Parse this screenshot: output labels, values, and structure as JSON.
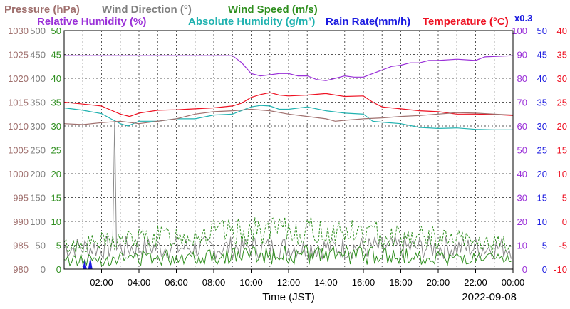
{
  "chart_data": {
    "type": "line",
    "date": "2022-09-08",
    "xlabel": "Time (JST)",
    "x_ticks": [
      "02:00",
      "04:00",
      "06:00",
      "08:00",
      "10:00",
      "12:00",
      "14:00",
      "16:00",
      "18:00",
      "20:00",
      "22:00",
      "00:00"
    ],
    "x_range_hours": [
      0,
      24
    ],
    "legend": {
      "row1": [
        {
          "text": "Pressure (hPa)",
          "color": "#a0706e"
        },
        {
          "text": "Wind Direction (°)",
          "color": "#7f7f7f"
        },
        {
          "text": "Wind Speed (m/s)",
          "color": "#2f8f1f"
        }
      ],
      "row2": [
        {
          "text": "Relative Humidity (%)",
          "color": "#9a30d8"
        },
        {
          "text": "Absolute Humidity (g/m³)",
          "color": "#20b2b0"
        },
        {
          "text": "Rain Rate(mm/h)",
          "color": "#1a1ae0"
        },
        {
          "text": "Temperature (°C)",
          "color": "#ee1122"
        }
      ],
      "rain_scale_note": "x0.3"
    },
    "axes": {
      "pressure": {
        "unit": "hPa",
        "range": [
          980,
          1030
        ],
        "color": "#a0706e",
        "ticks": [
          "980",
          "985",
          "990",
          "995",
          "1000",
          "1005",
          "1010",
          "1015",
          "1020",
          "1025",
          "1030"
        ]
      },
      "wind_direction": {
        "unit": "°",
        "range": [
          0,
          500
        ],
        "color": "#7f7f7f",
        "ticks": [
          "0",
          "50",
          "100",
          "150",
          "200",
          "250",
          "300",
          "350",
          "400",
          "450",
          "500"
        ]
      },
      "wind_speed": {
        "unit": "m/s",
        "range": [
          0,
          50
        ],
        "color": "#2f8f1f",
        "ticks": [
          "0",
          "5",
          "10",
          "15",
          "20",
          "25",
          "30",
          "35",
          "40",
          "45",
          "50"
        ]
      },
      "humidity": {
        "unit": "%",
        "range": [
          0,
          100
        ],
        "color": "#9a30d8",
        "ticks": [
          "0",
          "10",
          "20",
          "30",
          "40",
          "50",
          "60",
          "70",
          "80",
          "90",
          "100"
        ]
      },
      "rain": {
        "unit": "mm/h",
        "range": [
          0,
          50
        ],
        "color": "#1a1ae0",
        "ticks": [
          "0",
          "5",
          "10",
          "15",
          "20",
          "25",
          "30",
          "35",
          "40",
          "45",
          "50"
        ]
      },
      "temperature": {
        "unit": "°C",
        "range": [
          -10,
          40
        ],
        "color": "#ee1122",
        "ticks": [
          "-10",
          "-5",
          "0",
          "5",
          "10",
          "15",
          "20",
          "25",
          "30",
          "35",
          "40"
        ]
      }
    },
    "series": [
      {
        "name": "Relative Humidity",
        "axis": "humidity",
        "color": "#9a30d8",
        "points": [
          [
            0,
            89.5
          ],
          [
            6,
            89.5
          ],
          [
            8,
            89.5
          ],
          [
            9,
            89.5
          ],
          [
            9.5,
            86.5
          ],
          [
            10,
            82
          ],
          [
            10.5,
            81
          ],
          [
            11,
            81.5
          ],
          [
            11.5,
            82
          ],
          [
            12,
            82
          ],
          [
            12.5,
            81
          ],
          [
            13,
            81
          ],
          [
            13.5,
            79.5
          ],
          [
            14,
            79
          ],
          [
            14.5,
            80
          ],
          [
            15,
            81
          ],
          [
            15.5,
            80.5
          ],
          [
            16,
            80.5
          ],
          [
            16.5,
            82
          ],
          [
            17,
            83.5
          ],
          [
            17.5,
            85
          ],
          [
            18,
            85.5
          ],
          [
            18.5,
            86.5
          ],
          [
            19,
            86.5
          ],
          [
            19.5,
            87.5
          ],
          [
            20,
            87.5
          ],
          [
            21,
            88
          ],
          [
            22,
            87.5
          ],
          [
            22.5,
            89
          ],
          [
            24,
            89.5
          ]
        ]
      },
      {
        "name": "Temperature",
        "axis": "temperature",
        "color": "#ee1122",
        "points": [
          [
            0,
            25
          ],
          [
            1,
            24.6
          ],
          [
            2,
            24.2
          ],
          [
            3,
            22.5
          ],
          [
            3.5,
            22
          ],
          [
            4,
            22.7
          ],
          [
            5,
            23.3
          ],
          [
            6,
            23.4
          ],
          [
            7,
            23.6
          ],
          [
            8,
            23.8
          ],
          [
            9,
            24.2
          ],
          [
            9.5,
            24.8
          ],
          [
            10,
            26
          ],
          [
            10.5,
            26.6
          ],
          [
            11,
            27
          ],
          [
            11.5,
            26.5
          ],
          [
            12,
            26.3
          ],
          [
            13,
            26.5
          ],
          [
            14,
            26.8
          ],
          [
            14.5,
            26.5
          ],
          [
            15,
            26.2
          ],
          [
            16,
            26.3
          ],
          [
            16.5,
            25
          ],
          [
            17,
            24
          ],
          [
            18,
            23.6
          ],
          [
            19,
            23.2
          ],
          [
            20,
            23
          ],
          [
            21,
            22.5
          ],
          [
            22,
            22.5
          ],
          [
            23,
            22.4
          ],
          [
            24,
            22.2
          ]
        ]
      },
      {
        "name": "Absolute Humidity",
        "axis": "wind_speed",
        "color": "#20b2b0",
        "points": [
          [
            0,
            33.8
          ],
          [
            1,
            33.3
          ],
          [
            2,
            32.6
          ],
          [
            2.5,
            31.5
          ],
          [
            3,
            30.5
          ],
          [
            3.4,
            30
          ],
          [
            4,
            31
          ],
          [
            5,
            31
          ],
          [
            6,
            31.5
          ],
          [
            7,
            31.5
          ],
          [
            8,
            32.3
          ],
          [
            9,
            32.5
          ],
          [
            10,
            34
          ],
          [
            10.5,
            34.3
          ],
          [
            11,
            34.2
          ],
          [
            11.5,
            33.5
          ],
          [
            12,
            33.5
          ],
          [
            13,
            34
          ],
          [
            14,
            33.2
          ],
          [
            15,
            32.7
          ],
          [
            16,
            32.5
          ],
          [
            16.5,
            31
          ],
          [
            17,
            30.8
          ],
          [
            18,
            30.5
          ],
          [
            19,
            29.7
          ],
          [
            20,
            29.5
          ],
          [
            21,
            29.6
          ],
          [
            22,
            29.3
          ],
          [
            23,
            29.2
          ],
          [
            24,
            29.2
          ]
        ]
      },
      {
        "name": "Pressure",
        "axis": "pressure",
        "color": "#a0706e",
        "points": [
          [
            0,
            1010.5
          ],
          [
            1,
            1010.3
          ],
          [
            2,
            1010.7
          ],
          [
            3,
            1011
          ],
          [
            4,
            1010.5
          ],
          [
            5,
            1011
          ],
          [
            6,
            1011.5
          ],
          [
            7,
            1012.5
          ],
          [
            8,
            1013
          ],
          [
            9,
            1013.2
          ],
          [
            10,
            1013.5
          ],
          [
            11,
            1013.2
          ],
          [
            12,
            1012.5
          ],
          [
            13,
            1012
          ],
          [
            14,
            1011.5
          ],
          [
            14.5,
            1011
          ],
          [
            15,
            1011.2
          ],
          [
            16,
            1011.5
          ],
          [
            17,
            1011.7
          ],
          [
            18,
            1012
          ],
          [
            19,
            1012.2
          ],
          [
            20,
            1012.5
          ],
          [
            21,
            1012.8
          ],
          [
            22,
            1012.7
          ],
          [
            23,
            1012.5
          ],
          [
            24,
            1012.3
          ]
        ]
      }
    ],
    "wind_direction_spike": {
      "time": 2.7,
      "value": 310
    },
    "wind_direction_band": [
      20,
      70
    ],
    "wind_speed_max_band": [
      5,
      11
    ],
    "wind_speed_avg_band": [
      1,
      5
    ],
    "rain_events": [
      {
        "time": 1.1,
        "value": 2
      },
      {
        "time": 1.4,
        "value": 2.5
      }
    ]
  }
}
